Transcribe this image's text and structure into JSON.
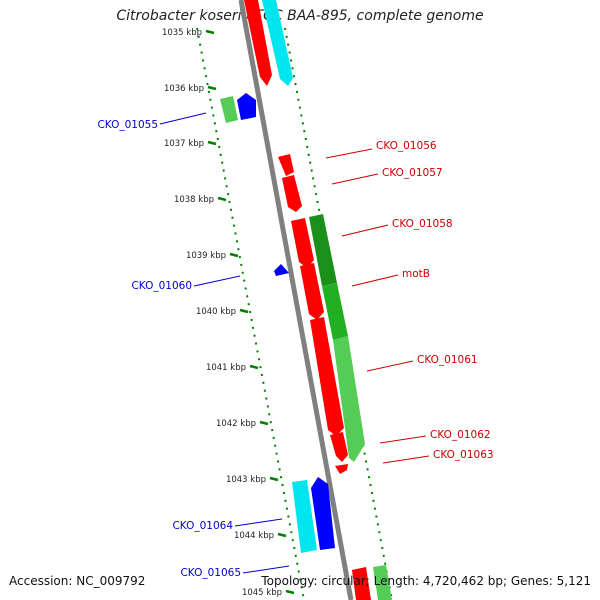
{
  "title": "Citrobacter koseri ATCC BAA-895, complete genome",
  "accession": "Accession: NC_009792",
  "topology": "Topology: circular; Length: 4,720,462 bp; Genes: 5,121",
  "colors": {
    "forward_cds": "#ff0000",
    "forward_other": "#00cc00",
    "reverse_cds": "#0000ff",
    "reverse_other": "#00ffff",
    "backbone": "#808080",
    "ticks": "#008000",
    "forward_label": "#cc0000",
    "reverse_label": "#0000cc"
  },
  "ticks": [
    {
      "label": "1035 kbp"
    },
    {
      "label": "1036 kbp"
    },
    {
      "label": "1037 kbp"
    },
    {
      "label": "1038 kbp"
    },
    {
      "label": "1039 kbp"
    },
    {
      "label": "1040 kbp"
    },
    {
      "label": "1041 kbp"
    },
    {
      "label": "1042 kbp"
    },
    {
      "label": "1043 kbp"
    },
    {
      "label": "1044 kbp"
    },
    {
      "label": "1045 kbp"
    }
  ],
  "gene_labels": [
    {
      "name": "CKO_01055",
      "strand": "reverse"
    },
    {
      "name": "CKO_01056",
      "strand": "forward"
    },
    {
      "name": "CKO_01057",
      "strand": "forward"
    },
    {
      "name": "CKO_01058",
      "strand": "forward"
    },
    {
      "name": "motB",
      "strand": "forward"
    },
    {
      "name": "CKO_01060",
      "strand": "reverse"
    },
    {
      "name": "CKO_01061",
      "strand": "forward"
    },
    {
      "name": "CKO_01062",
      "strand": "forward"
    },
    {
      "name": "CKO_01063",
      "strand": "forward"
    },
    {
      "name": "CKO_01064",
      "strand": "reverse"
    },
    {
      "name": "CKO_01065",
      "strand": "reverse"
    }
  ]
}
